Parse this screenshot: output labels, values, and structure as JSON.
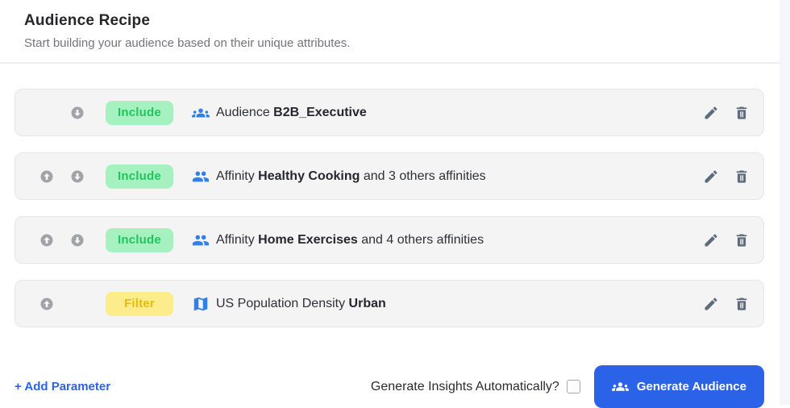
{
  "colors": {
    "accent_blue": "#2b63e8",
    "link_blue": "#2b63e8",
    "icon_blue": "#2f80ed",
    "include_badge_bg": "#a5f1bf",
    "include_badge_text": "#22c45f",
    "filter_badge_bg": "#fdec8b",
    "filter_badge_text": "#e5bb13",
    "row_bg": "#f4f4f5",
    "row_border": "#e6e6e9",
    "muted_icon": "#5d6b7b",
    "arrow_circle": "#a2a2aa"
  },
  "header": {
    "title": "Audience Recipe",
    "subtitle": "Start building your audience based on their unique attributes."
  },
  "rows": [
    {
      "move_up": false,
      "move_down": true,
      "badge": "Include",
      "badge_type": "include",
      "icon": "audience-groups-icon",
      "text": {
        "prefix": "Audience ",
        "bold": "B2B_Executive",
        "suffix": ""
      }
    },
    {
      "move_up": true,
      "move_down": true,
      "badge": "Include",
      "badge_type": "include",
      "icon": "affinity-people-icon",
      "text": {
        "prefix": "Affinity ",
        "bold": "Healthy Cooking",
        "suffix": " and 3 others affinities"
      }
    },
    {
      "move_up": true,
      "move_down": true,
      "badge": "Include",
      "badge_type": "include",
      "icon": "affinity-people-icon",
      "text": {
        "prefix": "Affinity ",
        "bold": "Home Exercises",
        "suffix": " and 4 others affinities"
      }
    },
    {
      "move_up": true,
      "move_down": false,
      "badge": "Filter",
      "badge_type": "filter",
      "icon": "map-icon",
      "text": {
        "prefix": "US Population Density ",
        "bold": "Urban",
        "suffix": ""
      }
    }
  ],
  "footer": {
    "add_parameter": "+ Add Parameter",
    "insights_question": "Generate Insights Automatically?",
    "insights_checked": false,
    "generate_button": "Generate Audience"
  }
}
